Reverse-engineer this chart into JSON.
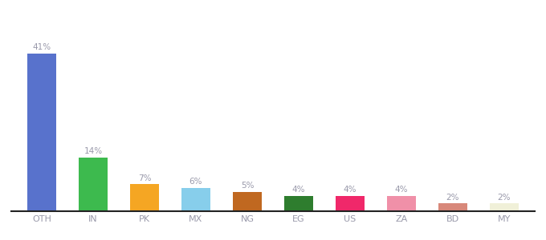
{
  "categories": [
    "OTH",
    "IN",
    "PK",
    "MX",
    "NG",
    "EG",
    "US",
    "ZA",
    "BD",
    "MY"
  ],
  "values": [
    41,
    14,
    7,
    6,
    5,
    4,
    4,
    4,
    2,
    2
  ],
  "colors": [
    "#5872cc",
    "#3dba4e",
    "#f5a623",
    "#87ceeb",
    "#c06820",
    "#2e7d2e",
    "#f0286a",
    "#f090a8",
    "#d8887a",
    "#f0f0d8"
  ],
  "background_color": "#ffffff",
  "label_color": "#9999aa",
  "label_fontsize": 7.5,
  "bar_width": 0.55,
  "ylim": [
    0,
    50
  ],
  "xlabel_fontsize": 8,
  "tick_label_color": "#9999aa",
  "spine_color": "#222222"
}
